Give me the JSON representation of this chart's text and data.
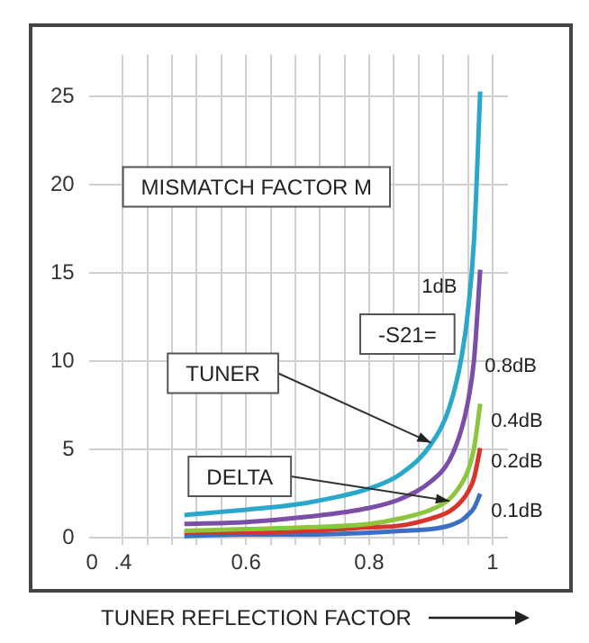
{
  "chart_data": {
    "type": "line",
    "xlabel": "TUNER REFLECTION FACTOR",
    "x": [
      0.5,
      0.6,
      0.7,
      0.8,
      0.85,
      0.9,
      0.93,
      0.95,
      0.96,
      0.97,
      0.98
    ],
    "series": [
      {
        "name": "1dB",
        "color": "#2aa7c9",
        "values": [
          1.3,
          1.6,
          2.0,
          2.8,
          3.6,
          5.3,
          7.4,
          10.3,
          12.8,
          16.9,
          25.3
        ]
      },
      {
        "name": "0.8dB",
        "color": "#7b4ea8",
        "values": [
          0.8,
          0.9,
          1.2,
          1.7,
          2.2,
          3.2,
          4.4,
          6.2,
          7.7,
          10.1,
          15.2
        ]
      },
      {
        "name": "0.4dB",
        "color": "#8cc63f",
        "values": [
          0.4,
          0.5,
          0.6,
          0.8,
          1.1,
          1.6,
          2.2,
          3.1,
          3.8,
          5.1,
          7.6
        ]
      },
      {
        "name": "0.2dB",
        "color": "#d9342b",
        "values": [
          0.3,
          0.3,
          0.4,
          0.6,
          0.7,
          1.1,
          1.5,
          2.1,
          2.6,
          3.4,
          5.1
        ]
      },
      {
        "name": "0.1dB",
        "color": "#3a6fc4",
        "values": [
          0.1,
          0.2,
          0.2,
          0.3,
          0.4,
          0.5,
          0.7,
          1.0,
          1.3,
          1.7,
          2.5
        ]
      }
    ],
    "xlim": [
      0.345,
      1.025
    ],
    "xticks": [
      {
        "value": 0.35,
        "label": "0"
      },
      {
        "value": 0.4,
        "label": ".4"
      },
      {
        "value": 0.44,
        "label": null
      },
      {
        "value": 0.48,
        "label": null
      },
      {
        "value": 0.52,
        "label": null
      },
      {
        "value": 0.56,
        "label": null
      },
      0.6,
      {
        "value": 0.64,
        "label": null
      },
      {
        "value": 0.68,
        "label": null
      },
      {
        "value": 0.72,
        "label": null
      },
      {
        "value": 0.76,
        "label": null
      },
      0.8,
      {
        "value": 0.84,
        "label": null
      },
      {
        "value": 0.88,
        "label": null
      },
      {
        "value": 0.92,
        "label": null
      },
      {
        "value": 0.96,
        "label": null
      },
      1
    ],
    "ylim": [
      -0.4,
      27.4
    ],
    "yticks": [
      0,
      5,
      10,
      15,
      20,
      25
    ],
    "grid": true,
    "legend": false,
    "marker": "none",
    "line_style": "solid",
    "annotations": [
      "MISMATCH FACTOR M",
      "-S21=",
      {
        "text": "TUNER",
        "x": 0.9,
        "y": 5.4
      },
      {
        "text": "DELTA",
        "x": 0.93,
        "y": 2.1
      }
    ]
  }
}
